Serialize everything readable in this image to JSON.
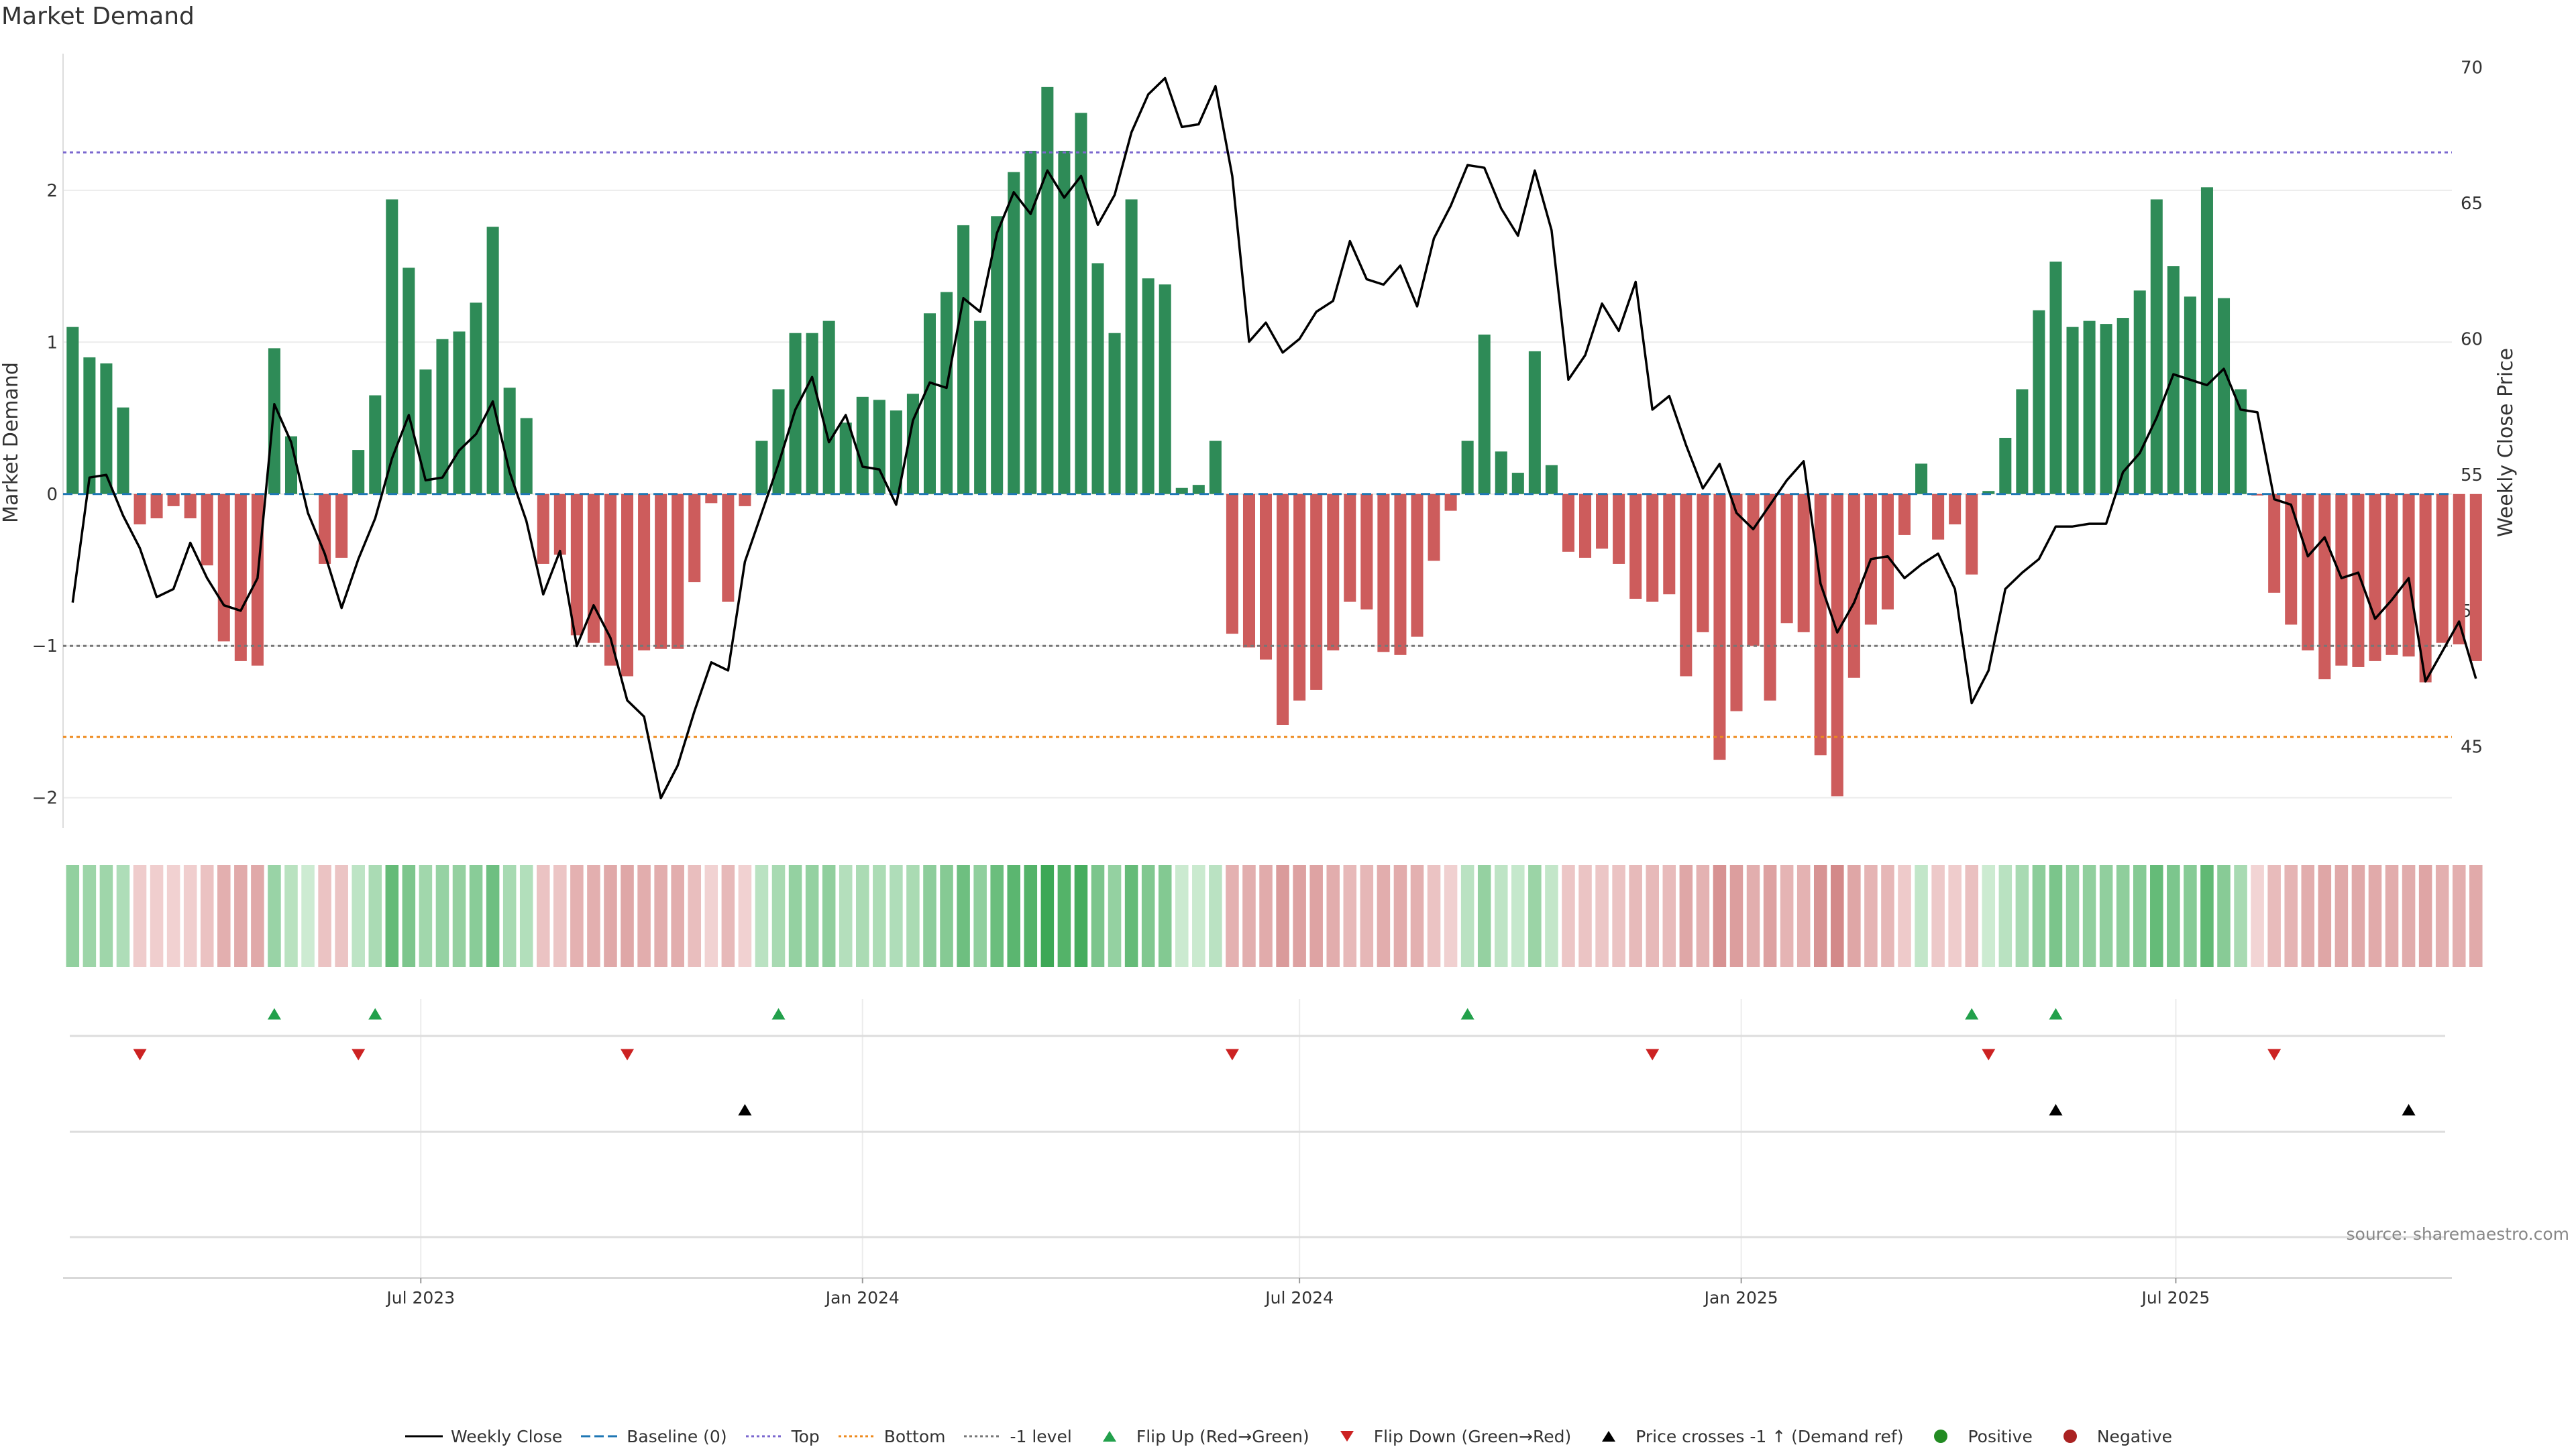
{
  "page": {
    "title": "Market Demand",
    "source": "source: sharemaestro.com"
  },
  "legend": [
    {
      "key": "weekly_close",
      "label": "Weekly Close",
      "symbol": "line",
      "color": "#000000"
    },
    {
      "key": "baseline",
      "label": "Baseline (0)",
      "symbol": "dash",
      "color": "#1f77b4"
    },
    {
      "key": "top",
      "label": "Top",
      "symbol": "dot",
      "color": "#7b68cf"
    },
    {
      "key": "bottom",
      "label": "Bottom",
      "symbol": "dot",
      "color": "#ee8a1e"
    },
    {
      "key": "minus_one",
      "label": "-1 level",
      "symbol": "dot",
      "color": "#777777"
    },
    {
      "key": "flip_up",
      "label": "Flip Up (Red→Green)",
      "symbol": "tri-up",
      "color": "#22a04b"
    },
    {
      "key": "flip_down",
      "label": "Flip Down (Green→Red)",
      "symbol": "tri-down",
      "color": "#cc2222"
    },
    {
      "key": "price_cross",
      "label": "Price crosses -1 ↑ (Demand ref)",
      "symbol": "tri-up",
      "color": "#000000"
    },
    {
      "key": "positive",
      "label": "Positive",
      "symbol": "circle",
      "color": "#228b22"
    },
    {
      "key": "negative",
      "label": "Negative",
      "symbol": "circle",
      "color": "#aa2222"
    }
  ],
  "chart_data": {
    "type": "bar",
    "title": "Market Demand",
    "ylabel": "Market Demand",
    "y2label": "Weekly Close Price",
    "ylim": [
      -2.2,
      2.9
    ],
    "y2lim": [
      42,
      70.5
    ],
    "yticks": [
      -2,
      -1,
      0,
      1,
      2
    ],
    "yticklabels": [
      "−2",
      "−1",
      "0",
      "1",
      "2"
    ],
    "y2ticks": [
      45,
      50,
      55,
      60,
      65,
      70
    ],
    "reference_lines": {
      "baseline": 0,
      "top": 2.25,
      "bottom": -1.6,
      "minus_one": -1
    },
    "colors": {
      "positive": "#2e8b57",
      "negative": "#cd5c5c",
      "price": "#000000"
    },
    "x_start": "2023-02-06",
    "x_range": [
      "2023-02-02",
      "2025-10-24"
    ],
    "x_ticks": [
      {
        "date": "2023-07-01",
        "label": "Jul 2023"
      },
      {
        "date": "2024-01-01",
        "label": "Jan 2024"
      },
      {
        "date": "2024-07-01",
        "label": "Jul 2024"
      },
      {
        "date": "2025-01-01",
        "label": "Jan 2025"
      },
      {
        "date": "2025-07-01",
        "label": "Jul 2025"
      }
    ],
    "series": [
      {
        "name": "Market Demand",
        "values": [
          1.1,
          0.9,
          0.86,
          0.57,
          -0.2,
          -0.16,
          -0.08,
          -0.16,
          -0.47,
          -0.97,
          -1.1,
          -1.13,
          0.96,
          0.38,
          0,
          -0.46,
          -0.42,
          0.29,
          0.65,
          1.94,
          1.49,
          0.82,
          1.02,
          1.07,
          1.26,
          1.76,
          0.7,
          0.5,
          -0.46,
          -0.4,
          -0.93,
          -0.98,
          -1.13,
          -1.2,
          -1.03,
          -1.02,
          -1.02,
          -0.58,
          -0.06,
          -0.71,
          -0.08,
          0.35,
          0.69,
          1.06,
          1.06,
          1.14,
          0.47,
          0.64,
          0.62,
          0.55,
          0.66,
          1.19,
          1.33,
          1.77,
          1.14,
          1.83,
          2.12,
          2.26,
          2.68,
          2.26,
          2.51,
          1.52,
          1.06,
          1.94,
          1.42,
          1.38,
          0.04,
          0.06,
          0.35,
          -0.92,
          -1.01,
          -1.09,
          -1.52,
          -1.36,
          -1.29,
          -1.03,
          -0.71,
          -0.76,
          -1.04,
          -1.06,
          -0.94,
          -0.44,
          -0.11,
          0.35,
          1.05,
          0.28,
          0.14,
          0.94,
          0.19,
          -0.38,
          -0.42,
          -0.36,
          -0.46,
          -0.69,
          -0.71,
          -0.66,
          -1.2,
          -0.91,
          -1.75,
          -1.43,
          -1.0,
          -1.36,
          -0.85,
          -0.91,
          -1.72,
          -1.99,
          -1.21,
          -0.86,
          -0.76,
          -0.27,
          0.2,
          -0.3,
          -0.2,
          -0.53,
          0.02,
          0.37,
          0.69,
          1.21,
          1.53,
          1.1,
          1.14,
          1.12,
          1.16,
          1.34,
          1.94,
          1.5,
          1.3,
          2.02,
          1.29,
          0.69,
          -0.01,
          -0.65,
          -0.86,
          -1.03,
          -1.22,
          -1.13,
          -1.14,
          -1.1,
          -1.06,
          -1.07,
          -1.24,
          -0.98,
          -0.99,
          -1.1
        ]
      },
      {
        "name": "Weekly Close",
        "axis": "right",
        "values": [
          50.3,
          54.9,
          55.0,
          53.5,
          52.3,
          50.5,
          50.8,
          52.5,
          51.2,
          50.2,
          50.0,
          51.2,
          57.6,
          56.2,
          53.6,
          52.1,
          50.1,
          51.9,
          53.4,
          55.6,
          57.2,
          54.8,
          54.9,
          55.9,
          56.5,
          57.7,
          55.1,
          53.3,
          50.6,
          52.2,
          48.7,
          50.2,
          49.0,
          46.7,
          46.1,
          43.1,
          44.3,
          46.3,
          48.1,
          47.8,
          51.8,
          53.6,
          55.4,
          57.4,
          58.6,
          56.2,
          57.2,
          55.3,
          55.2,
          53.9,
          57.0,
          58.4,
          58.2,
          61.5,
          61.0,
          63.9,
          65.4,
          64.6,
          66.2,
          65.2,
          66.0,
          64.2,
          65.3,
          67.6,
          69.0,
          69.6,
          67.8,
          67.9,
          69.3,
          66.0,
          59.9,
          60.6,
          59.5,
          60.0,
          61.0,
          61.4,
          63.6,
          62.2,
          62.0,
          62.7,
          61.2,
          63.7,
          64.9,
          66.4,
          66.3,
          64.8,
          63.8,
          66.2,
          64.0,
          58.5,
          59.4,
          61.3,
          60.3,
          62.1,
          57.4,
          57.9,
          56.1,
          54.5,
          55.4,
          53.6,
          53.0,
          53.9,
          54.8,
          55.5,
          51.0,
          49.2,
          50.3,
          51.9,
          52.0,
          51.2,
          51.7,
          52.1,
          50.8,
          46.6,
          47.8,
          50.8,
          51.4,
          51.9,
          53.1,
          53.1,
          53.2,
          53.2,
          55.1,
          55.8,
          57.1,
          58.7,
          58.5,
          58.3,
          58.9,
          57.4,
          57.3,
          54.1,
          53.9,
          52.0,
          52.7,
          51.2,
          51.4,
          49.7,
          50.4,
          51.2,
          47.4,
          48.5,
          49.6,
          47.5
        ]
      }
    ],
    "flip_up": [
      "2023-05-01",
      "2023-06-12",
      "2023-11-27",
      "2024-09-09",
      "2025-04-07",
      "2025-05-12"
    ],
    "flip_down": [
      "2023-03-06",
      "2023-06-05",
      "2023-09-25",
      "2024-06-03",
      "2024-11-25",
      "2025-04-14",
      "2025-08-11"
    ],
    "price_cross": [
      "2023-11-13",
      "2025-05-12",
      "2025-10-06"
    ]
  }
}
